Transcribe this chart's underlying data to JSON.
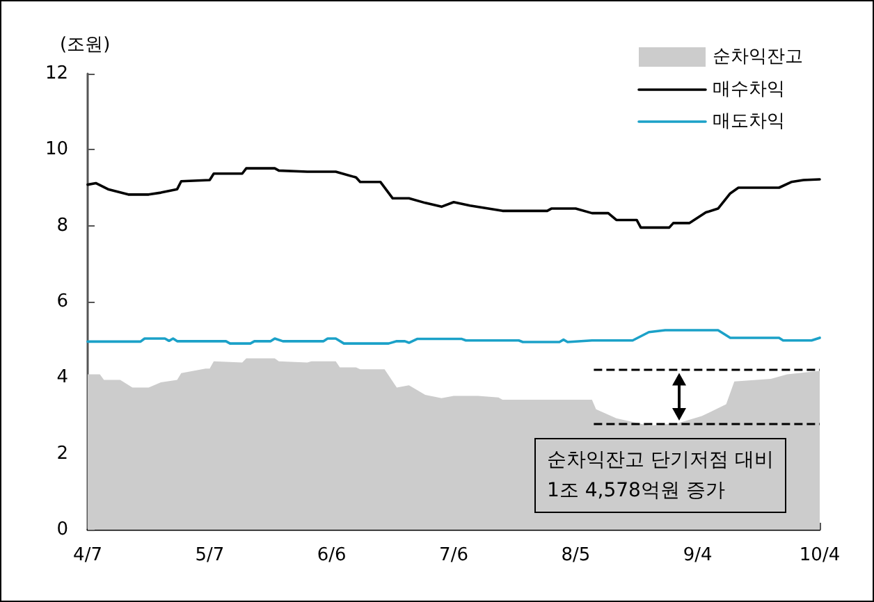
{
  "chart_data": {
    "type": "line",
    "ylabel": "(조원)",
    "xlim": [
      "--04-07",
      "--10-04"
    ],
    "xticks": [
      {
        "value": "--04-07",
        "label": "4/7"
      },
      {
        "value": "--05-07",
        "label": "5/7"
      },
      {
        "value": "--06-06",
        "label": "6/6"
      },
      {
        "value": "--07-06",
        "label": "7/6"
      },
      {
        "value": "--08-05",
        "label": "8/5"
      },
      {
        "value": "--09-04",
        "label": "9/4"
      },
      {
        "value": "--10-04",
        "label": "10/4"
      }
    ],
    "ylim": [
      0,
      12
    ],
    "yticks": [
      0,
      2,
      4,
      6,
      8,
      10,
      12
    ],
    "grid": false,
    "legend": "top right",
    "marker": "none",
    "line_style": "solid",
    "series": [
      {
        "name": "순차익잔고",
        "type": "area",
        "color": "#cccccc",
        "x": [
          "--04-07",
          "--04-10",
          "--04-11",
          "--04-15",
          "--04-18",
          "--04-22",
          "--04-25",
          "--04-29",
          "--04-30",
          "--05-06",
          "--05-07",
          "--05-08",
          "--05-15",
          "--05-16",
          "--05-23",
          "--05-24",
          "--05-31",
          "--06-01",
          "--06-07",
          "--06-08",
          "--06-12",
          "--06-13",
          "--06-19",
          "--06-22",
          "--06-25",
          "--06-29",
          "--07-03",
          "--07-06",
          "--07-12",
          "--07-17",
          "--07-18",
          "--08-09",
          "--08-10",
          "--08-15",
          "--08-23",
          "--08-30",
          "--09-05",
          "--09-11",
          "--09-13",
          "--09-22",
          "--09-26",
          "--10-04"
        ],
        "values": [
          4.09,
          4.09,
          3.94,
          3.94,
          3.74,
          3.74,
          3.88,
          3.94,
          4.12,
          4.24,
          4.24,
          4.43,
          4.4,
          4.51,
          4.51,
          4.43,
          4.4,
          4.43,
          4.43,
          4.27,
          4.27,
          4.22,
          4.22,
          3.74,
          3.8,
          3.55,
          3.46,
          3.52,
          3.52,
          3.48,
          3.42,
          3.42,
          3.17,
          2.93,
          2.74,
          2.8,
          2.99,
          3.3,
          3.9,
          3.97,
          4.09,
          4.18
        ]
      },
      {
        "name": "매수차익",
        "color": "#000000",
        "x": [
          "--04-07",
          "--04-09",
          "--04-12",
          "--04-17",
          "--04-22",
          "--04-25",
          "--04-29",
          "--04-30",
          "--05-07",
          "--05-08",
          "--05-15",
          "--05-16",
          "--05-23",
          "--05-24",
          "--05-31",
          "--06-07",
          "--06-12",
          "--06-13",
          "--06-18",
          "--06-21",
          "--06-25",
          "--06-29",
          "--07-03",
          "--07-06",
          "--07-10",
          "--07-18",
          "--07-29",
          "--07-30",
          "--08-05",
          "--08-09",
          "--08-13",
          "--08-15",
          "--08-20",
          "--08-21",
          "--08-28",
          "--08-29",
          "--09-02",
          "--09-06",
          "--09-09",
          "--09-12",
          "--09-14",
          "--09-24",
          "--09-27",
          "--09-30",
          "--10-04"
        ],
        "values": [
          9.08,
          9.12,
          8.96,
          8.82,
          8.82,
          8.87,
          8.96,
          9.17,
          9.2,
          9.37,
          9.37,
          9.51,
          9.51,
          9.45,
          9.42,
          9.42,
          9.27,
          9.15,
          9.15,
          8.72,
          8.72,
          8.6,
          8.5,
          8.62,
          8.53,
          8.39,
          8.39,
          8.45,
          8.45,
          8.33,
          8.33,
          8.15,
          8.15,
          7.95,
          7.95,
          8.07,
          8.07,
          8.35,
          8.45,
          8.85,
          9.0,
          9.0,
          9.15,
          9.2,
          9.22
        ]
      },
      {
        "name": "매도차익",
        "color": "#1ba1c8",
        "x": [
          "--04-07",
          "--04-20",
          "--04-21",
          "--04-26",
          "--04-27",
          "--04-28",
          "--04-29",
          "--05-11",
          "--05-12",
          "--05-17",
          "--05-18",
          "--05-22",
          "--05-23",
          "--05-25",
          "--06-04",
          "--06-05",
          "--06-07",
          "--06-09",
          "--06-20",
          "--06-22",
          "--06-24",
          "--06-25",
          "--06-27",
          "--07-08",
          "--07-09",
          "--07-22",
          "--07-23",
          "--08-01",
          "--08-02",
          "--08-03",
          "--08-09",
          "--08-19",
          "--08-23",
          "--08-27",
          "--09-09",
          "--09-12",
          "--09-24",
          "--09-25",
          "--10-02",
          "--10-04"
        ],
        "values": [
          4.95,
          4.95,
          5.03,
          5.03,
          4.97,
          5.03,
          4.96,
          4.96,
          4.9,
          4.9,
          4.96,
          4.96,
          5.03,
          4.96,
          4.96,
          5.03,
          5.03,
          4.9,
          4.9,
          4.96,
          4.96,
          4.92,
          5.02,
          5.02,
          4.98,
          4.98,
          4.94,
          4.94,
          5.0,
          4.94,
          4.98,
          4.98,
          5.2,
          5.25,
          5.25,
          5.05,
          5.05,
          4.98,
          4.98,
          5.05
        ]
      }
    ],
    "ref_lines": [
      {
        "axis": "y",
        "value": 4.2,
        "color": "#000000",
        "line_style": "dashed"
      },
      {
        "axis": "y",
        "value": 2.8,
        "color": "#000000",
        "line_style": "dashed"
      }
    ],
    "annotations": [
      "순차익잔고 단기저점 대비\n1조 4,578억원 증가"
    ]
  }
}
